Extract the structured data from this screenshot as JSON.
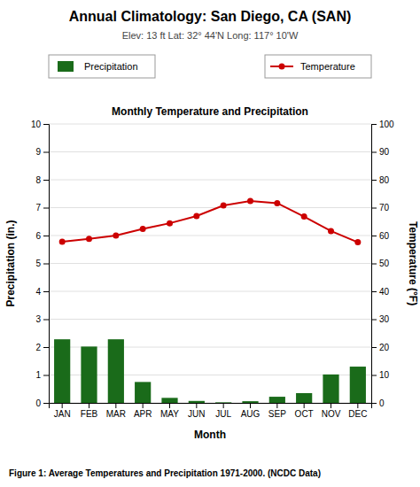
{
  "chart_data": {
    "type": "bar",
    "title": "Annual Climatology: San Diego, CA (SAN)",
    "subtitle": "Elev: 13 ft   Lat: 32° 44'N   Long: 117° 10'W",
    "annotations": [
      "Monthly Temperature and Precipitation",
      "Figure 1: Average Temperatures and Precipitation 1971-2000. (NCDC Data)"
    ],
    "categories": [
      "JAN",
      "FEB",
      "MAR",
      "APR",
      "MAY",
      "JUN",
      "JUL",
      "AUG",
      "SEP",
      "OCT",
      "NOV",
      "DEC"
    ],
    "series": [
      {
        "name": "Precipitation",
        "type": "bar",
        "color": "#1a6b1a",
        "values": [
          2.28,
          2.02,
          2.28,
          0.75,
          0.18,
          0.07,
          0.02,
          0.06,
          0.22,
          0.35,
          1.02,
          1.3
        ]
      },
      {
        "name": "Temperature",
        "type": "line",
        "color": "#cc0000",
        "marker": "circle",
        "axis": "y2",
        "values": [
          57.8,
          58.8,
          60.0,
          62.4,
          64.4,
          67.0,
          70.8,
          72.4,
          71.6,
          66.8,
          61.6,
          57.6
        ]
      }
    ],
    "xlabel": "Month",
    "ylabel": "Precipitation (in.)",
    "y2label": "Temperature (°F)",
    "ylim": [
      0,
      10
    ],
    "yticks": [
      0,
      1,
      2,
      3,
      4,
      5,
      6,
      7,
      8,
      9,
      10
    ],
    "y2lim": [
      0,
      100
    ],
    "y2ticks": [
      0,
      10,
      20,
      30,
      40,
      50,
      60,
      70,
      80,
      90,
      100
    ],
    "grid": true,
    "legend": "top"
  }
}
